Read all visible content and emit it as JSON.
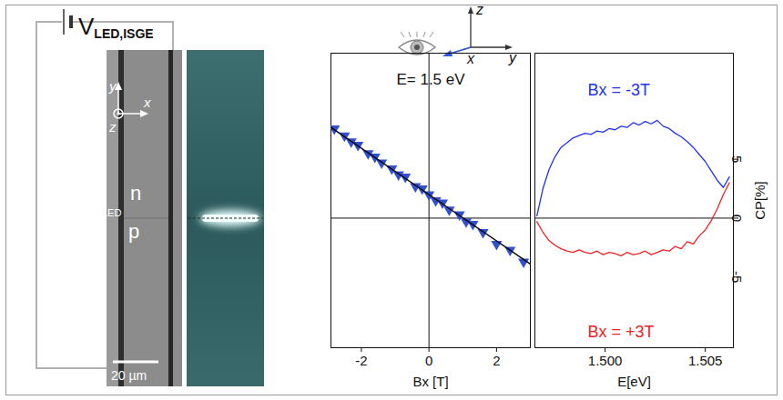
{
  "chart_data": [
    {
      "type": "scatter",
      "title": "E= 1.5 eV",
      "x_label": "Bx [T]",
      "xlim": [
        -2.9,
        3
      ],
      "xticks": [
        -2,
        0,
        2
      ],
      "ylim": [
        -11,
        14
      ],
      "tick_labels": "x",
      "rules_x": [
        0
      ],
      "rules_y": [
        0
      ],
      "series": [
        {
          "type": "scatter",
          "color": "#3050d0",
          "marker": "triangle-down",
          "x": [
            -2.8,
            -2.5,
            -2.3,
            -2.1,
            -1.8,
            -1.6,
            -1.4,
            -1.1,
            -0.9,
            -0.7,
            -0.4,
            -0.2,
            0,
            0.2,
            0.4,
            0.6,
            0.9,
            1.1,
            1.3,
            1.6,
            2.0,
            2.4,
            2.8
          ],
          "values": [
            7.6,
            7.0,
            6.5,
            6.2,
            5.5,
            5.2,
            4.7,
            4.2,
            3.7,
            3.5,
            2.7,
            2.5,
            2.0,
            1.5,
            1.3,
            0.7,
            0.3,
            -0.3,
            -0.5,
            -1.2,
            -2.2,
            -2.7,
            -3.7
          ]
        },
        {
          "type": "line",
          "color": "#000000",
          "x": [
            -2.9,
            3
          ],
          "values": [
            7.7,
            -3.9
          ]
        }
      ]
    },
    {
      "type": "line",
      "x_label": "E[eV]",
      "y_label": "CP[%]",
      "xlim": [
        1.4965,
        1.5064
      ],
      "xticks": [
        {
          "value": 1.5,
          "label": "1.500"
        },
        {
          "value": 1.505,
          "label": "1.505"
        }
      ],
      "ylim": [
        -11,
        14
      ],
      "yticks": [
        -5,
        0,
        5
      ],
      "rules_y": [
        0
      ],
      "x": [
        1.4966,
        1.4969,
        1.4972,
        1.4975,
        1.4978,
        1.4981,
        1.4984,
        1.4987,
        1.499,
        1.4993,
        1.4996,
        1.4999,
        1.5002,
        1.5005,
        1.5008,
        1.5011,
        1.5014,
        1.5017,
        1.502,
        1.5023,
        1.5026,
        1.5029,
        1.5032,
        1.5035,
        1.5038,
        1.5041,
        1.5044,
        1.5047,
        1.505,
        1.5053,
        1.5056,
        1.5059,
        1.5062
      ],
      "series": [
        {
          "name": "Bx = -3T",
          "color": "#2233ee",
          "values": [
            0.2,
            2.5,
            4.1,
            5.2,
            6.0,
            6.4,
            6.8,
            7.0,
            7.2,
            7.1,
            7.4,
            7.3,
            7.6,
            7.5,
            7.8,
            7.7,
            8.1,
            7.9,
            8.2,
            8.0,
            8.3,
            7.8,
            7.6,
            7.2,
            6.9,
            6.5,
            6.0,
            5.4,
            4.8,
            4.0,
            3.2,
            2.6,
            3.5
          ]
        },
        {
          "name": "Bx = +3T",
          "color": "#ee2222",
          "values": [
            -0.3,
            -1.2,
            -1.9,
            -2.3,
            -2.6,
            -2.8,
            -2.9,
            -2.7,
            -2.9,
            -3.0,
            -2.8,
            -3.1,
            -2.9,
            -3.0,
            -3.2,
            -2.9,
            -3.1,
            -3.0,
            -2.8,
            -3.1,
            -2.9,
            -2.7,
            -2.8,
            -2.4,
            -2.6,
            -2.0,
            -2.2,
            -1.5,
            -1.0,
            -0.2,
            0.8,
            2.0,
            3.0
          ]
        }
      ]
    }
  ],
  "diagram": {
    "source_label": "V",
    "source_subscript": "LED,ISGE",
    "micrograph": {
      "axis_labels": {
        "y": "y",
        "z": "z",
        "x": "x"
      },
      "regions": {
        "n": "n",
        "led": "LED",
        "p": "p"
      },
      "scale_bar": "20 µm"
    },
    "axes_icon": {
      "z": "z",
      "x": "x",
      "y": "y"
    }
  }
}
